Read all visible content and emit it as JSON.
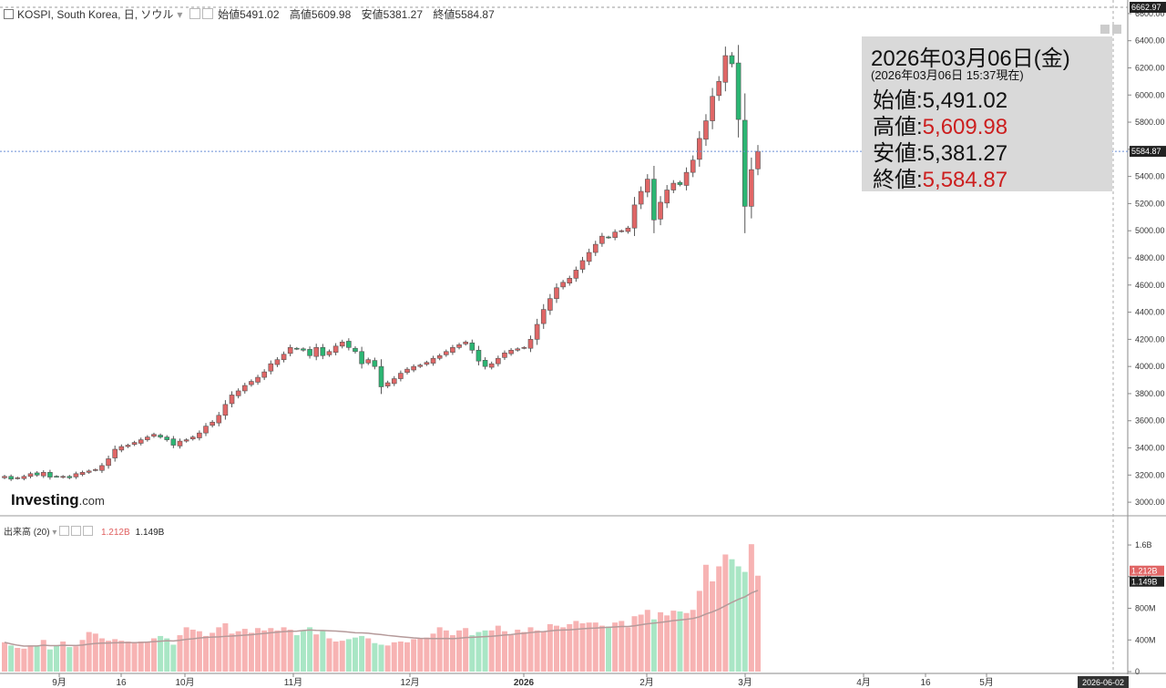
{
  "header": {
    "symbol": "KOSPI, South Korea, 日, ソウル",
    "open_label": "始値",
    "open": "5491.02",
    "high_label": "高値",
    "high": "5609.98",
    "low_label": "安値",
    "low": "5381.27",
    "close_label": "終値",
    "close": "5584.87"
  },
  "volume_header": {
    "title": "出来高 (20)",
    "volume": "1.212B",
    "ma": "1.149B"
  },
  "infobox": {
    "date": "2026年03月06日(金)",
    "time": "(2026年03月06日 15:37現在)",
    "open_label": "始値:",
    "open": "5,491.02",
    "high_label": "高値:",
    "high": "5,609.98",
    "low_label": "安値:",
    "low": "5,381.27",
    "close_label": "終値:",
    "close": "5,584.87"
  },
  "logo": {
    "name": "Investing",
    "suffix": ".com"
  },
  "colors": {
    "up": "#e06666",
    "down": "#2bb673",
    "vol_up": "#f7b3b3",
    "vol_down": "#a9e6c5",
    "ma": "#b59a9a"
  },
  "chart_data": {
    "type": "candlestick",
    "price_axis": {
      "ylim": [
        2900,
        6700
      ],
      "ticks": [
        "3000.00",
        "3200.00",
        "3400.00",
        "3600.00",
        "3800.00",
        "4000.00",
        "4200.00",
        "4400.00",
        "4600.00",
        "4800.00",
        "5000.00",
        "5200.00",
        "5400.00",
        "5600.00",
        "5800.00",
        "6000.00",
        "6200.00",
        "6400.00",
        "6600.00"
      ],
      "current_label": "5584.87",
      "max_label": "6662.97"
    },
    "volume_axis": {
      "ylim": [
        0,
        1900000000
      ],
      "ticks": [
        "0",
        "400M",
        "800M",
        "1.2B",
        "1.6B"
      ],
      "volume_label": "1.212B",
      "ma_label": "1.149B"
    },
    "x_labels": [
      "9月",
      "16",
      "10月",
      "11月",
      "12月",
      "2026",
      "2月",
      "3月",
      "4月",
      "16",
      "5月"
    ],
    "cursor_date_label": "2026-06-02",
    "closes": [
      3190,
      3170,
      3180,
      3190,
      3210,
      3200,
      3220,
      3185,
      3190,
      3190,
      3180,
      3210,
      3220,
      3230,
      3240,
      3270,
      3320,
      3390,
      3410,
      3420,
      3440,
      3460,
      3480,
      3500,
      3480,
      3460,
      3420,
      3450,
      3460,
      3480,
      3510,
      3560,
      3590,
      3640,
      3720,
      3790,
      3820,
      3860,
      3890,
      3920,
      3960,
      4020,
      4050,
      4090,
      4140,
      4130,
      4120,
      4080,
      4140,
      4080,
      4110,
      4150,
      4180,
      4140,
      4110,
      4020,
      4050,
      4000,
      3850,
      3880,
      3910,
      3950,
      3980,
      4000,
      4010,
      4030,
      4060,
      4080,
      4110,
      4140,
      4160,
      4180,
      4120,
      4040,
      4000,
      4020,
      4060,
      4100,
      4120,
      4130,
      4140,
      4200,
      4310,
      4420,
      4500,
      4580,
      4620,
      4650,
      4710,
      4780,
      4840,
      4900,
      4960,
      4950,
      4990,
      5000,
      5020,
      5190,
      5290,
      5380,
      5080,
      5210,
      5300,
      5350,
      5340,
      5430,
      5520,
      5680,
      5810,
      5990,
      6100,
      6290,
      6230,
      5820,
      5180,
      5450,
      5584.87
    ],
    "volumes": [
      370,
      330,
      300,
      290,
      330,
      320,
      400,
      280,
      330,
      380,
      310,
      320,
      400,
      500,
      480,
      420,
      390,
      410,
      390,
      380,
      360,
      380,
      380,
      420,
      450,
      420,
      340,
      460,
      560,
      530,
      510,
      450,
      490,
      560,
      610,
      480,
      510,
      540,
      490,
      550,
      520,
      550,
      520,
      560,
      530,
      460,
      520,
      560,
      470,
      520,
      420,
      380,
      390,
      410,
      430,
      450,
      420,
      360,
      340,
      330,
      370,
      380,
      370,
      410,
      420,
      430,
      480,
      560,
      520,
      460,
      520,
      550,
      460,
      500,
      520,
      520,
      580,
      510,
      460,
      530,
      500,
      560,
      520,
      510,
      600,
      580,
      560,
      600,
      640,
      610,
      620,
      620,
      580,
      570,
      620,
      640,
      560,
      700,
      720,
      780,
      660,
      750,
      710,
      770,
      760,
      740,
      780,
      1020,
      1350,
      1140,
      1330,
      1480,
      1420,
      1330,
      1260,
      1610,
      1212
    ]
  }
}
